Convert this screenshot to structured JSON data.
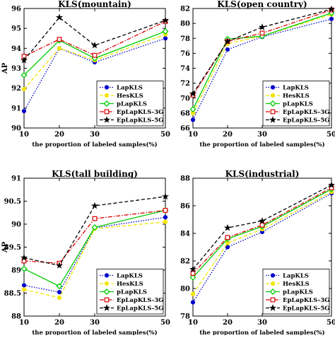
{
  "chart_data": [
    {
      "type": "line",
      "title": "KLS(mountain)",
      "xlabel": "the proportion of labeled samples(%)",
      "ylabel": "AP",
      "x": [
        10,
        20,
        30,
        50
      ],
      "xticks": [
        "10",
        "20",
        "30",
        "50"
      ],
      "xlim": [
        10,
        50
      ],
      "ylim": [
        90,
        96
      ],
      "yticks": [
        "90",
        "91",
        "92",
        "93",
        "94",
        "95",
        "96"
      ],
      "grid": false,
      "legend": "bottom-right",
      "series": [
        {
          "name": "LapKLS",
          "color": "#0000cc",
          "style": "dotted",
          "marker": "circle",
          "values": [
            90.85,
            94.0,
            93.3,
            94.5
          ]
        },
        {
          "name": "HesKLS",
          "color": "#f2e600",
          "style": "dashed",
          "marker": "circle",
          "values": [
            91.95,
            94.0,
            93.4,
            94.7
          ]
        },
        {
          "name": "pLapKLS",
          "color": "#00cc00",
          "style": "solid",
          "marker": "diamond",
          "values": [
            92.65,
            94.4,
            93.5,
            94.85
          ]
        },
        {
          "name": "EpLapKLS-3G",
          "color": "#dd0000",
          "style": "dashdot",
          "marker": "square",
          "values": [
            93.6,
            94.45,
            93.65,
            95.35
          ]
        },
        {
          "name": "EpLapKLS-5G",
          "color": "#000000",
          "style": "dashed",
          "marker": "star",
          "values": [
            93.4,
            95.55,
            94.15,
            95.4
          ]
        }
      ]
    },
    {
      "type": "line",
      "title": "KLS(open country)",
      "xlabel": "the proportion of labeled samples(%)",
      "ylabel": "",
      "x": [
        10,
        20,
        30,
        50
      ],
      "xticks": [
        "10",
        "20",
        "30",
        "50"
      ],
      "xlim": [
        10,
        50
      ],
      "ylim": [
        66,
        82
      ],
      "yticks": [
        "66",
        "68",
        "70",
        "72",
        "74",
        "76",
        "78",
        "80",
        "82"
      ],
      "grid": false,
      "legend": "bottom-right",
      "series": [
        {
          "name": "LapKLS",
          "color": "#0000cc",
          "style": "dotted",
          "marker": "circle",
          "values": [
            67.1,
            76.5,
            78.2,
            80.6
          ]
        },
        {
          "name": "HesKLS",
          "color": "#f2e600",
          "style": "dashed",
          "marker": "circle",
          "values": [
            68.0,
            77.3,
            78.3,
            81.2
          ]
        },
        {
          "name": "pLapKLS",
          "color": "#00cc00",
          "style": "solid",
          "marker": "diamond",
          "values": [
            68.5,
            77.9,
            78.3,
            81.4
          ]
        },
        {
          "name": "EpLapKLS-3G",
          "color": "#dd0000",
          "style": "dashdot",
          "marker": "square",
          "values": [
            70.4,
            77.6,
            78.7,
            81.8
          ]
        },
        {
          "name": "EpLapKLS-5G",
          "color": "#000000",
          "style": "dashed",
          "marker": "star",
          "values": [
            70.6,
            77.6,
            79.5,
            81.9
          ]
        }
      ]
    },
    {
      "type": "line",
      "title": "KLS(tall building)",
      "xlabel": "the proportion of labeled samples(%)",
      "ylabel": "AP",
      "x": [
        10,
        20,
        30,
        50
      ],
      "xticks": [
        "10",
        "20",
        "30",
        "50"
      ],
      "xlim": [
        10,
        50
      ],
      "ylim": [
        88,
        91
      ],
      "yticks": [
        "88",
        "88.5",
        "89",
        "89.5",
        "90",
        "90.5",
        "91"
      ],
      "grid": false,
      "legend": "bottom-right",
      "series": [
        {
          "name": "LapKLS",
          "color": "#0000cc",
          "style": "dotted",
          "marker": "circle",
          "values": [
            88.67,
            88.52,
            89.92,
            90.15
          ]
        },
        {
          "name": "HesKLS",
          "color": "#f2e600",
          "style": "dashed",
          "marker": "circle",
          "values": [
            88.58,
            88.4,
            89.9,
            90.05
          ]
        },
        {
          "name": "pLapKLS",
          "color": "#00cc00",
          "style": "solid",
          "marker": "diamond",
          "values": [
            89.03,
            88.65,
            89.93,
            90.3
          ]
        },
        {
          "name": "EpLapKLS-3G",
          "color": "#dd0000",
          "style": "dashdot",
          "marker": "square",
          "values": [
            89.2,
            89.15,
            90.12,
            90.3
          ]
        },
        {
          "name": "EpLapKLS-5G",
          "color": "#000000",
          "style": "dashed",
          "marker": "star",
          "values": [
            89.27,
            89.1,
            90.4,
            90.6
          ]
        }
      ]
    },
    {
      "type": "line",
      "title": "KLS(industrial)",
      "xlabel": "the proportion of labeled samples(%)",
      "ylabel": "",
      "x": [
        10,
        20,
        30,
        50
      ],
      "xticks": [
        "10",
        "20",
        "30",
        "50"
      ],
      "xlim": [
        10,
        50
      ],
      "ylim": [
        78,
        88
      ],
      "yticks": [
        "78",
        "80",
        "82",
        "84",
        "86",
        "88"
      ],
      "grid": false,
      "legend": "bottom-right",
      "series": [
        {
          "name": "LapKLS",
          "color": "#0000cc",
          "style": "dotted",
          "marker": "circle",
          "values": [
            79.0,
            83.0,
            84.1,
            86.9
          ]
        },
        {
          "name": "HesKLS",
          "color": "#f2e600",
          "style": "dashed",
          "marker": "circle",
          "values": [
            79.6,
            83.3,
            84.3,
            87.0
          ]
        },
        {
          "name": "pLapKLS",
          "color": "#00cc00",
          "style": "solid",
          "marker": "diamond",
          "values": [
            80.8,
            83.6,
            84.5,
            87.2
          ]
        },
        {
          "name": "EpLapKLS-3G",
          "color": "#dd0000",
          "style": "dashdot",
          "marker": "square",
          "values": [
            81.1,
            83.7,
            84.6,
            87.3
          ]
        },
        {
          "name": "EpLapKLS-5G",
          "color": "#000000",
          "style": "dashed",
          "marker": "star",
          "values": [
            81.4,
            84.4,
            84.9,
            87.5
          ]
        }
      ]
    }
  ]
}
